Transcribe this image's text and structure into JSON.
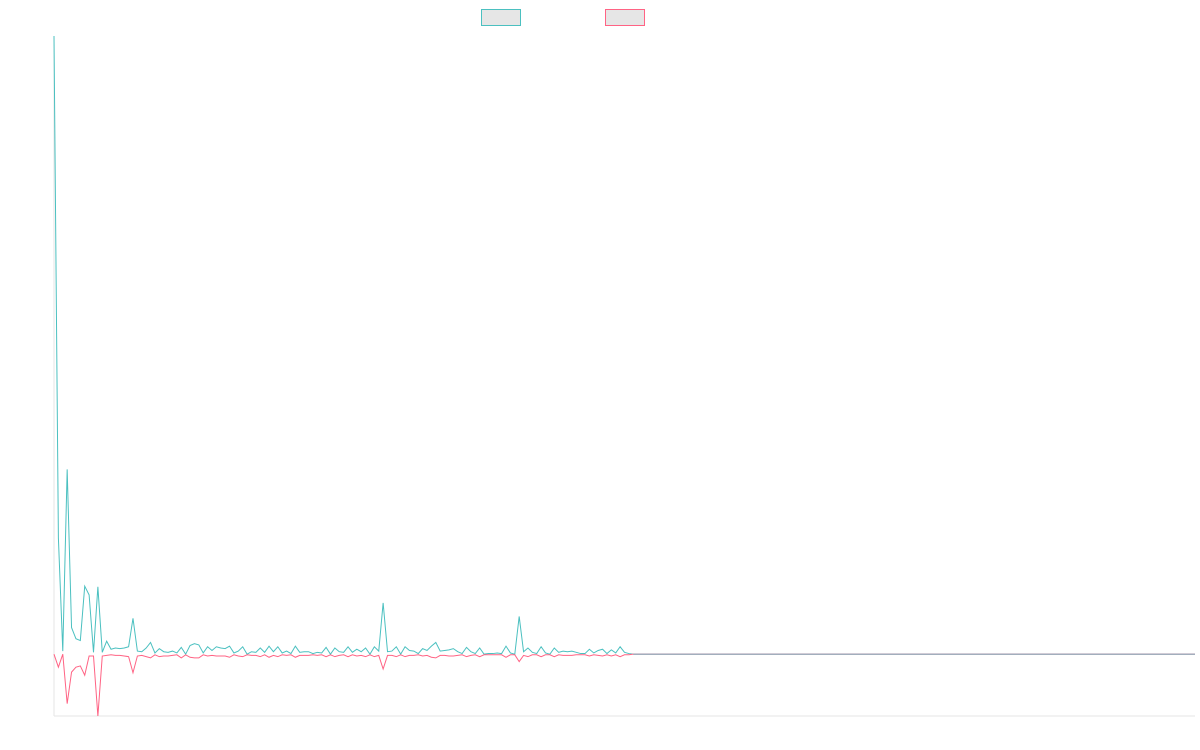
{
  "chart_data": {
    "type": "line",
    "title": "",
    "xlabel": "",
    "ylabel": "",
    "grid": false,
    "legend_position": "top-center",
    "series": [
      {
        "name": "",
        "color": "#4bc0c0",
        "values": [
          100.0,
          18.8,
          0.5,
          29.9,
          4.3,
          2.5,
          2.2,
          11.0,
          9.6,
          0.3,
          10.9,
          0.3,
          2.1,
          0.8,
          1.0,
          0.9,
          1.0,
          1.2,
          5.8,
          0.5,
          0.4,
          1.0,
          1.9,
          0.2,
          0.9,
          0.4,
          0.3,
          0.5,
          0.2,
          1.1,
          0.0,
          1.4,
          1.7,
          1.5,
          0.2,
          1.2,
          0.6,
          1.2,
          1.0,
          0.9,
          1.3,
          0.2,
          0.5,
          1.2,
          0.0,
          0.4,
          0.3,
          1.0,
          0.3,
          1.3,
          0.4,
          1.2,
          0.2,
          0.5,
          0.1,
          1.3,
          0.3,
          0.4,
          0.4,
          0.1,
          0.3,
          0.2,
          1.1,
          0.0,
          1.0,
          0.4,
          0.3,
          1.2,
          0.3,
          0.8,
          0.4,
          1.0,
          0.0,
          1.2,
          0.5,
          8.3,
          0.4,
          0.5,
          1.2,
          0.0,
          1.2,
          0.6,
          0.5,
          0.1,
          0.9,
          0.6,
          1.3,
          1.9,
          0.5,
          0.6,
          0.7,
          0.9,
          0.4,
          0.1,
          1.1,
          0.4,
          0.1,
          1.0,
          0.0,
          0.1,
          0.1,
          0.2,
          0.1,
          1.3,
          0.2,
          0.0,
          6.1,
          0.4,
          1.0,
          0.3,
          0.1,
          1.2,
          0.2,
          0.0,
          1.0,
          0.3,
          0.5,
          0.4,
          0.5,
          0.3,
          0.1,
          0.1,
          0.8,
          0.2,
          0.6,
          0.8,
          0.1,
          0.7,
          0.2,
          1.2,
          0.3,
          0.1,
          0.0,
          0.0,
          0.0,
          0.0,
          0.0,
          0.0,
          0.0,
          0.0,
          0.0,
          0.0,
          0.0,
          0.0,
          0.0,
          0.0,
          0.0,
          0.0,
          0.0,
          0.0,
          0.0,
          0.0,
          0.0,
          0.0,
          0.0,
          0.0,
          0.0,
          0.0,
          0.0,
          0.0,
          0.0,
          0.0,
          0.0,
          0.0,
          0.0,
          0.0,
          0.0,
          0.0,
          0.0,
          0.0,
          0.0,
          0.0,
          0.0,
          0.0,
          0.0,
          0.0,
          0.0,
          0.0,
          0.0,
          0.0,
          0.0,
          0.0,
          0.0,
          0.0,
          0.0,
          0.0,
          0.0,
          0.0,
          0.0,
          0.0,
          0.0,
          0.0,
          0.0,
          0.0,
          0.0,
          0.0,
          0.0,
          0.0,
          0.0,
          0.0,
          0.0,
          0.0,
          0.0,
          0.0,
          0.0,
          0.0,
          0.0,
          0.0,
          0.0,
          0.0,
          0.0,
          0.0,
          0.0,
          0.0,
          0.0,
          0.0,
          0.0,
          0.0,
          0.0,
          0.0,
          0.0,
          0.0,
          0.0,
          0.0,
          0.0,
          0.0,
          0.0,
          0.0,
          0.0,
          0.0,
          0.0,
          0.0,
          0.0,
          0.0,
          0.0,
          0.0,
          0.0,
          0.0,
          0.0,
          0.0,
          0.0,
          0.0,
          0.0,
          0.0,
          0.0,
          0.0,
          0.0,
          0.0,
          0.0,
          0.0,
          0.0,
          0.0,
          0.0,
          0.0,
          0.0,
          0.0,
          0.0,
          0.0,
          0.0,
          0.0,
          0.0
        ]
      },
      {
        "name": "",
        "color": "#ff6384",
        "values": [
          0.0,
          -2.1,
          0.0,
          -8.0,
          -2.9,
          -2.1,
          -1.9,
          -3.4,
          -0.3,
          -0.3,
          -10.0,
          -0.3,
          -0.2,
          -0.1,
          -0.2,
          -0.2,
          -0.3,
          -0.4,
          -3.0,
          -0.3,
          -0.2,
          -0.4,
          -0.6,
          -0.1,
          -0.4,
          -0.3,
          -0.3,
          -0.2,
          -0.1,
          -0.6,
          -0.1,
          -0.5,
          -0.6,
          -0.6,
          -0.1,
          -0.3,
          -0.2,
          -0.3,
          -0.3,
          -0.3,
          -0.5,
          -0.1,
          -0.3,
          -0.4,
          -0.1,
          -0.2,
          -0.2,
          -0.4,
          -0.1,
          -0.5,
          -0.2,
          -0.4,
          -0.1,
          -0.2,
          -0.1,
          -0.5,
          -0.2,
          -0.2,
          -0.2,
          -0.1,
          -0.2,
          -0.1,
          -0.4,
          -0.1,
          -0.4,
          -0.2,
          -0.1,
          -0.4,
          -0.1,
          -0.3,
          -0.2,
          -0.4,
          -0.1,
          -0.4,
          -0.2,
          -2.4,
          -0.2,
          -0.2,
          -0.4,
          -0.1,
          -0.4,
          -0.2,
          -0.2,
          -0.1,
          -0.3,
          -0.2,
          -0.5,
          -0.6,
          -0.2,
          -0.2,
          -0.3,
          -0.3,
          -0.2,
          -0.1,
          -0.4,
          -0.2,
          -0.1,
          -0.4,
          -0.1,
          -0.1,
          -0.1,
          -0.1,
          -0.1,
          -0.5,
          -0.1,
          -0.1,
          -1.2,
          -0.2,
          -0.4,
          -0.1,
          -0.1,
          -0.4,
          -0.1,
          -0.1,
          -0.4,
          -0.1,
          -0.2,
          -0.2,
          -0.2,
          -0.1,
          -0.1,
          -0.1,
          -0.3,
          -0.1,
          -0.2,
          -0.3,
          -0.1,
          -0.3,
          -0.1,
          -0.4,
          -0.1,
          -0.1,
          0.0,
          0.0,
          0.0,
          0.0,
          0.0,
          0.0,
          0.0,
          0.0,
          0.0,
          0.0,
          0.0,
          0.0,
          0.0,
          0.0,
          0.0,
          0.0,
          0.0,
          0.0,
          0.0,
          0.0,
          0.0,
          0.0,
          0.0,
          0.0,
          0.0,
          0.0,
          0.0,
          0.0,
          0.0,
          0.0,
          0.0,
          0.0,
          0.0,
          0.0,
          0.0,
          0.0,
          0.0,
          0.0,
          0.0,
          0.0,
          0.0,
          0.0,
          0.0,
          0.0,
          0.0,
          0.0,
          0.0,
          0.0,
          0.0,
          0.0,
          0.0,
          0.0,
          0.0,
          0.0,
          0.0,
          0.0,
          0.0,
          0.0,
          0.0,
          0.0,
          0.0,
          0.0,
          0.0,
          0.0,
          0.0,
          0.0,
          0.0,
          0.0,
          0.0,
          0.0,
          0.0,
          0.0,
          0.0,
          0.0,
          0.0,
          0.0,
          0.0,
          0.0,
          0.0,
          0.0,
          0.0,
          0.0,
          0.0,
          0.0,
          0.0,
          0.0,
          0.0,
          0.0,
          0.0,
          0.0,
          0.0,
          0.0,
          0.0,
          0.0,
          0.0,
          0.0,
          0.0,
          0.0,
          0.0,
          0.0,
          0.0,
          0.0,
          0.0,
          0.0,
          0.0,
          0.0,
          0.0,
          0.0,
          0.0,
          0.0,
          0.0,
          0.0,
          0.0,
          0.0,
          0.0,
          0.0,
          0.0,
          0.0,
          0.0,
          0.0,
          0.0,
          0.0,
          0.0,
          0.0,
          0.0,
          0.0,
          0.0,
          0.0,
          0.0
        ]
      }
    ],
    "ylim": [
      -10,
      100
    ],
    "legend_swatch_fill": "#e6e6e6",
    "baseline_color": "#8fa3b5",
    "axis_color": "#e5e5e5"
  }
}
